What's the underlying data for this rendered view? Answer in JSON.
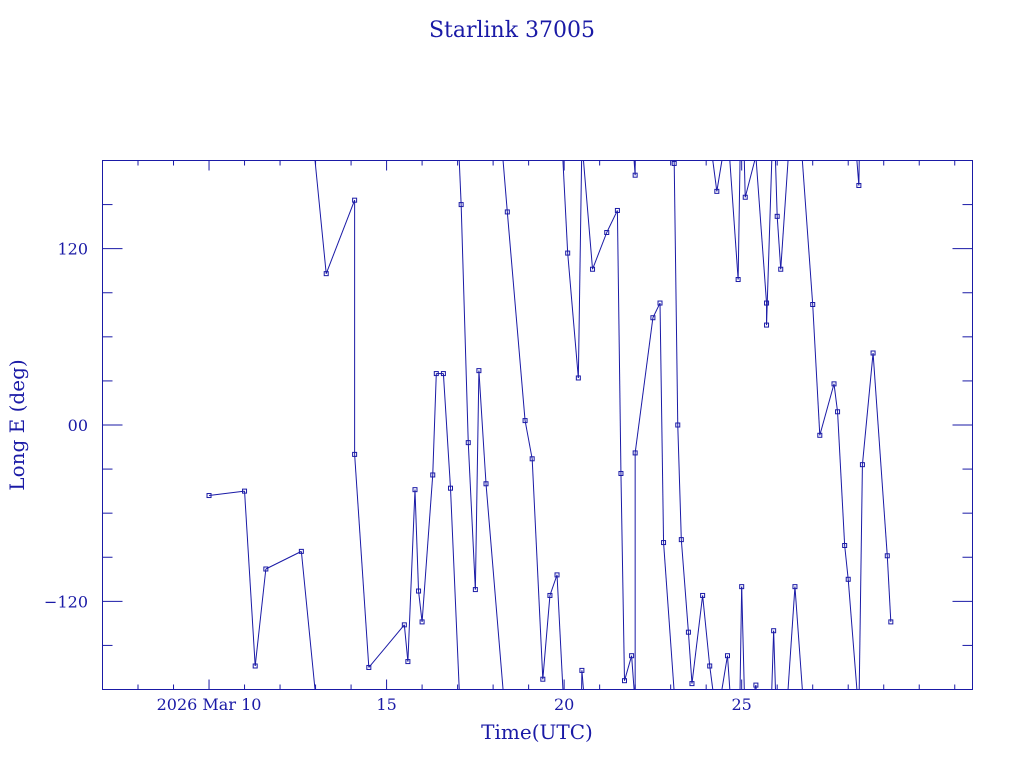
{
  "chart_data": {
    "type": "scatter",
    "title": "Starlink 37005",
    "xlabel": "Time(UTC)",
    "ylabel": "Long E (deg)",
    "xlim": [
      "2026-03-07",
      "2026-03-31.5"
    ],
    "ylim": [
      -180,
      180
    ],
    "x_ticks": [
      {
        "date": "2026-03-10",
        "label": "2026 Mar 10"
      },
      {
        "date": "2026-03-15",
        "label": "15"
      },
      {
        "date": "2026-03-20",
        "label": "20"
      },
      {
        "date": "2026-03-25",
        "label": "25"
      }
    ],
    "y_ticks": [
      {
        "value": 120,
        "label": "120"
      },
      {
        "value": 0,
        "label": "00"
      },
      {
        "value": -120,
        "label": "−120"
      }
    ],
    "grid": false,
    "legend": "none",
    "line_color": "#1a1aa6",
    "series": [
      {
        "points": [
          [
            "2026-03-10",
            -48
          ],
          [
            "2026-03-11",
            -45
          ],
          [
            "2026-03-11.3",
            -164
          ],
          [
            "2026-03-11.6",
            -98
          ],
          [
            "2026-03-12.6",
            -86
          ],
          [
            "2026-03-13.3",
            103
          ],
          [
            "2026-03-14.1",
            153
          ],
          [
            "2026-03-14.1",
            -20
          ],
          [
            "2026-03-14.5",
            -165
          ],
          [
            "2026-03-15.5",
            -136
          ],
          [
            "2026-03-15.6",
            -161
          ],
          [
            "2026-03-15.8",
            -44
          ],
          [
            "2026-03-15.9",
            -113
          ],
          [
            "2026-03-16",
            -134
          ],
          [
            "2026-03-16.3",
            -34
          ],
          [
            "2026-03-16.4",
            35
          ],
          [
            "2026-03-16.6",
            35
          ],
          [
            "2026-03-16.8",
            -43
          ],
          [
            "2026-03-17.1",
            150
          ],
          [
            "2026-03-17.3",
            -12
          ],
          [
            "2026-03-17.5",
            -112
          ],
          [
            "2026-03-17.6",
            37
          ],
          [
            "2026-03-17.8",
            -40
          ],
          [
            "2026-03-18.4",
            145
          ],
          [
            "2026-03-18.9",
            3
          ],
          [
            "2026-03-19.1",
            -23
          ],
          [
            "2026-03-19.4",
            -173
          ],
          [
            "2026-03-19.6",
            -116
          ],
          [
            "2026-03-19.8",
            -102
          ],
          [
            "2026-03-20.1",
            117
          ],
          [
            "2026-03-20.4",
            32
          ],
          [
            "2026-03-20.5",
            -167
          ],
          [
            "2026-03-20.8",
            106
          ],
          [
            "2026-03-21.2",
            131
          ],
          [
            "2026-03-21.5",
            146
          ],
          [
            "2026-03-21.6",
            -33
          ],
          [
            "2026-03-21.7",
            -174
          ],
          [
            "2026-03-21.9",
            -157
          ],
          [
            "2026-03-22",
            170
          ],
          [
            "2026-03-22",
            -19
          ],
          [
            "2026-03-22.5",
            73
          ],
          [
            "2026-03-22.7",
            83
          ],
          [
            "2026-03-22.8",
            -80
          ],
          [
            "2026-03-23.1",
            178
          ],
          [
            "2026-03-23.2",
            0
          ],
          [
            "2026-03-23.3",
            -78
          ],
          [
            "2026-03-23.5",
            -141
          ],
          [
            "2026-03-23.6",
            -176
          ],
          [
            "2026-03-23.9",
            -116
          ],
          [
            "2026-03-24.1",
            -164
          ],
          [
            "2026-03-24.3",
            159
          ],
          [
            "2026-03-24.6",
            -157
          ],
          [
            "2026-03-24.9",
            99
          ],
          [
            "2026-03-25",
            -110
          ],
          [
            "2026-03-25.1",
            155
          ],
          [
            "2026-03-25.4",
            -177
          ],
          [
            "2026-03-25.7",
            83
          ],
          [
            "2026-03-25.7",
            68
          ],
          [
            "2026-03-25.9",
            -140
          ],
          [
            "2026-03-26",
            142
          ],
          [
            "2026-03-26.1",
            106
          ],
          [
            "2026-03-26.5",
            -110
          ],
          [
            "2026-03-27",
            82
          ],
          [
            "2026-03-27.2",
            -7
          ],
          [
            "2026-03-27.6",
            28
          ],
          [
            "2026-03-27.7",
            9
          ],
          [
            "2026-03-27.9",
            -82
          ],
          [
            "2026-03-28",
            -105
          ],
          [
            "2026-03-28.3",
            163
          ],
          [
            "2026-03-28.4",
            -27
          ],
          [
            "2026-03-28.7",
            49
          ],
          [
            "2026-03-29.1",
            -89
          ],
          [
            "2026-03-29.2",
            -134
          ]
        ]
      }
    ]
  }
}
